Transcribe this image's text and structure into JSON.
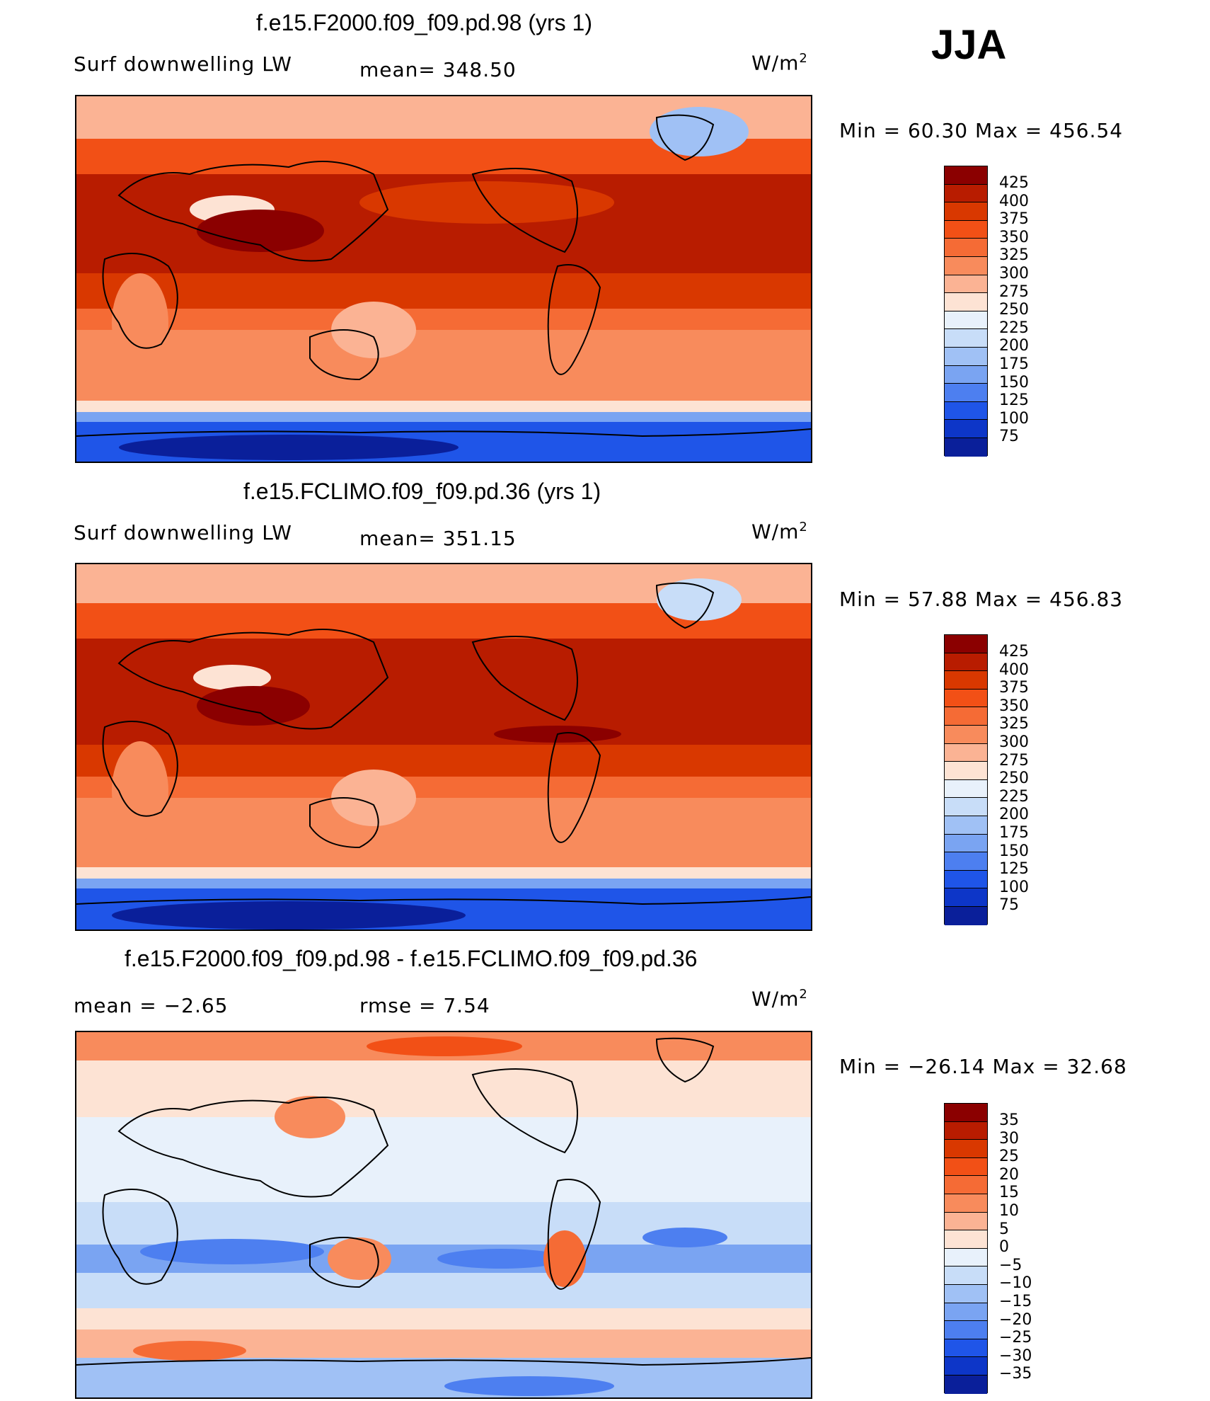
{
  "season": "JJA",
  "panels": [
    {
      "title": "f.e15.F2000.f09_f09.pd.98 (yrs 1)",
      "left_label": "Surf  downwelling  LW",
      "center_label": "mean=  348.50",
      "units": "W/m",
      "units_sup": "2",
      "minmax": "Min  =    60.30  Max  =  456.54"
    },
    {
      "title": "f.e15.FCLIMO.f09_f09.pd.36 (yrs 1)",
      "left_label": "Surf  downwelling  LW",
      "center_label": "mean=  351.15",
      "units": "W/m",
      "units_sup": "2",
      "minmax": "Min  =    57.88  Max  =  456.83"
    },
    {
      "title": "f.e15.F2000.f09_f09.pd.98 - f.e15.FCLIMO.f09_f09.pd.36",
      "left_label": "mean  =    −2.65",
      "center_label": "rmse  =     7.54",
      "units": "W/m",
      "units_sup": "2",
      "minmax": "Min  =  −26.14  Max  =    32.68"
    }
  ],
  "chart_data": [
    {
      "type": "heatmap",
      "title": "f.e15.F2000.f09_f09.pd.98 (yrs 1)",
      "variable": "Surf downwelling LW",
      "units": "W/m2",
      "mean": 348.5,
      "min": 60.3,
      "max": 456.54,
      "levels": [
        "425",
        "400",
        "375",
        "350",
        "325",
        "300",
        "275",
        "250",
        "225",
        "200",
        "175",
        "150",
        "125",
        "100",
        "75"
      ],
      "colors": [
        "#8b0000",
        "#b81c00",
        "#d93800",
        "#f25016",
        "#f56b35",
        "#f88b5c",
        "#fbb394",
        "#fde3d4",
        "#e8f1fb",
        "#c8ddf8",
        "#a0c1f5",
        "#7aa4f2",
        "#4d7ff0",
        "#1f55e8",
        "#0d36c8",
        "#0a1f9a"
      ]
    },
    {
      "type": "heatmap",
      "title": "f.e15.FCLIMO.f09_f09.pd.36 (yrs 1)",
      "variable": "Surf downwelling LW",
      "units": "W/m2",
      "mean": 351.15,
      "min": 57.88,
      "max": 456.83,
      "levels": [
        "425",
        "400",
        "375",
        "350",
        "325",
        "300",
        "275",
        "250",
        "225",
        "200",
        "175",
        "150",
        "125",
        "100",
        "75"
      ],
      "colors": [
        "#8b0000",
        "#b81c00",
        "#d93800",
        "#f25016",
        "#f56b35",
        "#f88b5c",
        "#fbb394",
        "#fde3d4",
        "#e8f1fb",
        "#c8ddf8",
        "#a0c1f5",
        "#7aa4f2",
        "#4d7ff0",
        "#1f55e8",
        "#0d36c8",
        "#0a1f9a"
      ]
    },
    {
      "type": "heatmap",
      "title": "f.e15.F2000.f09_f09.pd.98 - f.e15.FCLIMO.f09_f09.pd.36",
      "units": "W/m2",
      "mean": -2.65,
      "rmse": 7.54,
      "min": -26.14,
      "max": 32.68,
      "levels": [
        "35",
        "30",
        "25",
        "20",
        "15",
        "10",
        "5",
        "0",
        "−5",
        "−10",
        "−15",
        "−20",
        "−25",
        "−30",
        "−35"
      ],
      "colors": [
        "#8b0000",
        "#b81c00",
        "#d93800",
        "#f25016",
        "#f56b35",
        "#f88b5c",
        "#fbb394",
        "#fde3d4",
        "#e8f1fb",
        "#c8ddf8",
        "#a0c1f5",
        "#7aa4f2",
        "#4d7ff0",
        "#1f55e8",
        "#0d36c8",
        "#0a1f9a"
      ]
    }
  ]
}
